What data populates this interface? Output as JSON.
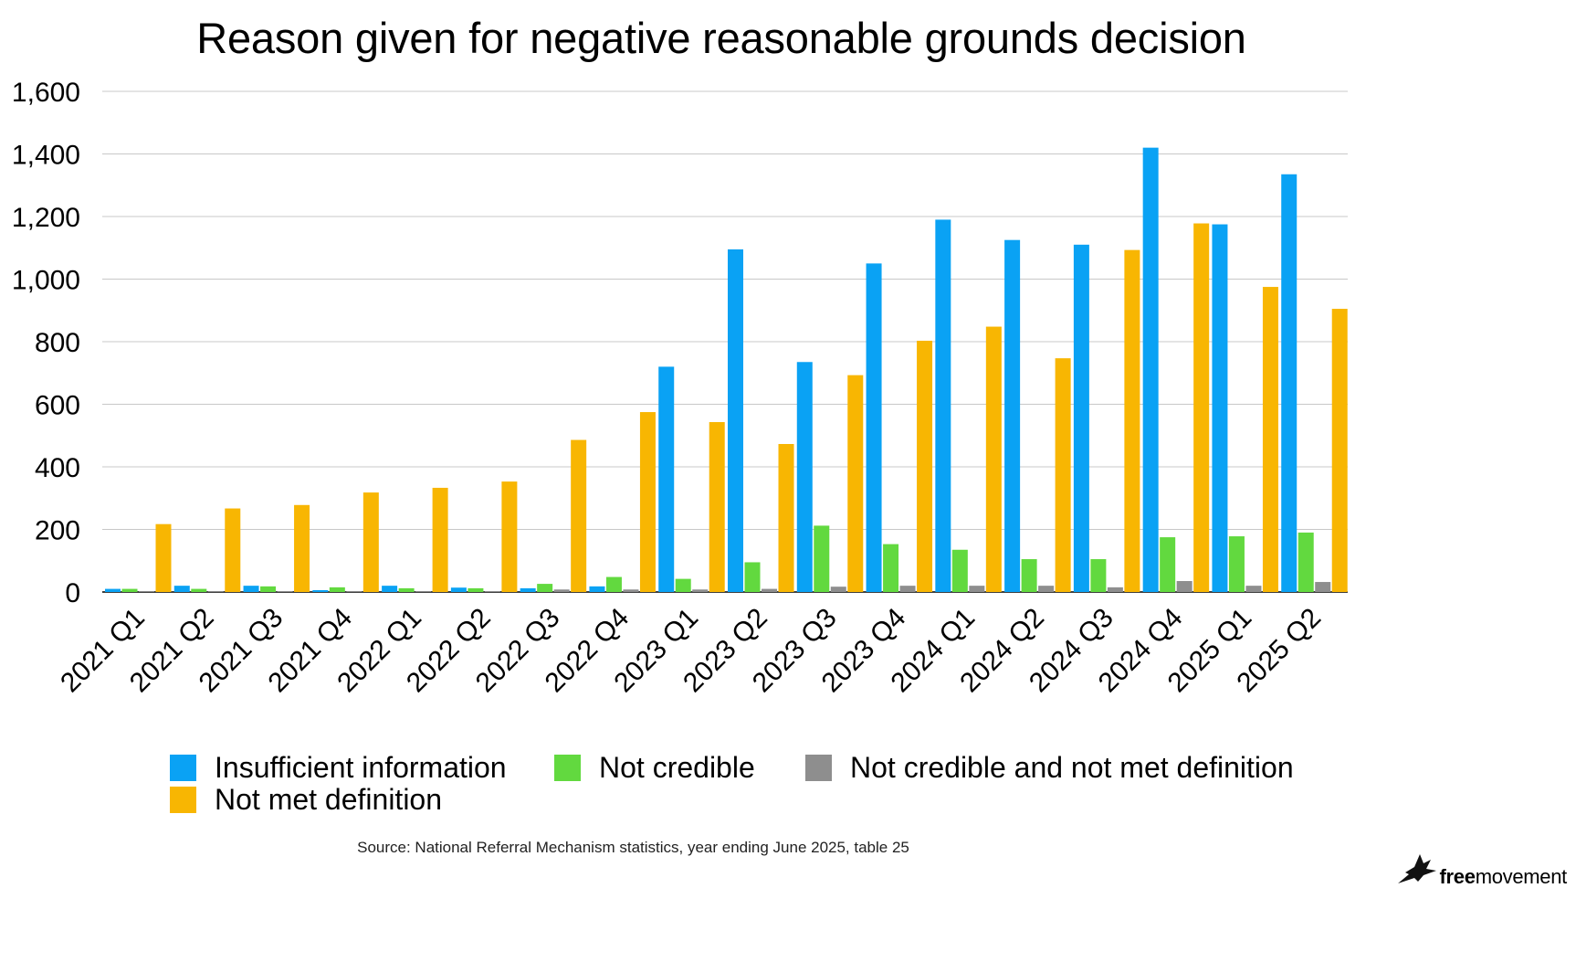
{
  "chart_data": {
    "type": "bar",
    "title": "Reason given for negative reasonable grounds decision",
    "xlabel": "",
    "ylabel": "",
    "ylim": [
      0,
      1600
    ],
    "yticks": [
      0,
      200,
      400,
      600,
      800,
      1000,
      1200,
      1400,
      1600
    ],
    "ytick_labels": [
      "0",
      "200",
      "400",
      "600",
      "800",
      "1,000",
      "1,200",
      "1,400",
      "1,600"
    ],
    "grid": "horizontal",
    "legend_position": "bottom",
    "categories": [
      "2021 Q1",
      "2021 Q2",
      "2021 Q3",
      "2021 Q4",
      "2022 Q1",
      "2022 Q2",
      "2022 Q3",
      "2022 Q4",
      "2023 Q1",
      "2023 Q2",
      "2023 Q3",
      "2023 Q4",
      "2024 Q1",
      "2024 Q2",
      "2024 Q3",
      "2024 Q4",
      "2025 Q1",
      "2025 Q2"
    ],
    "series": [
      {
        "name": "Insufficient information",
        "color": "#0aa2f4",
        "values": [
          10,
          20,
          20,
          6,
          20,
          14,
          12,
          18,
          720,
          1095,
          735,
          1050,
          1190,
          1125,
          1110,
          1420,
          1175,
          1335
        ]
      },
      {
        "name": "Not credible",
        "color": "#62d93f",
        "values": [
          10,
          10,
          18,
          15,
          12,
          12,
          26,
          48,
          42,
          95,
          212,
          153,
          135,
          105,
          105,
          175,
          178,
          190
        ]
      },
      {
        "name": "Not credible and not met definition",
        "color": "#8e8e8e",
        "values": [
          2,
          2,
          3,
          2,
          2,
          3,
          8,
          8,
          8,
          10,
          17,
          20,
          20,
          20,
          15,
          35,
          20,
          32
        ]
      },
      {
        "name": "Not met definition",
        "color": "#f8b602",
        "values": [
          217,
          267,
          278,
          318,
          333,
          353,
          486,
          575,
          543,
          473,
          693,
          803,
          848,
          747,
          1093,
          1178,
          975,
          905
        ]
      }
    ]
  },
  "legend": [
    {
      "label": "Insufficient information",
      "color": "#0aa2f4"
    },
    {
      "label": "Not credible",
      "color": "#62d93f"
    },
    {
      "label": "Not credible and not met definition",
      "color": "#8e8e8e"
    },
    {
      "label": "Not met definition",
      "color": "#f8b602"
    }
  ],
  "source": "Source: National Referral Mechanism statistics, year ending June 2025, table 25",
  "brand": {
    "bold": "free",
    "regular": "movement",
    "icon": "bird-logo-icon"
  }
}
